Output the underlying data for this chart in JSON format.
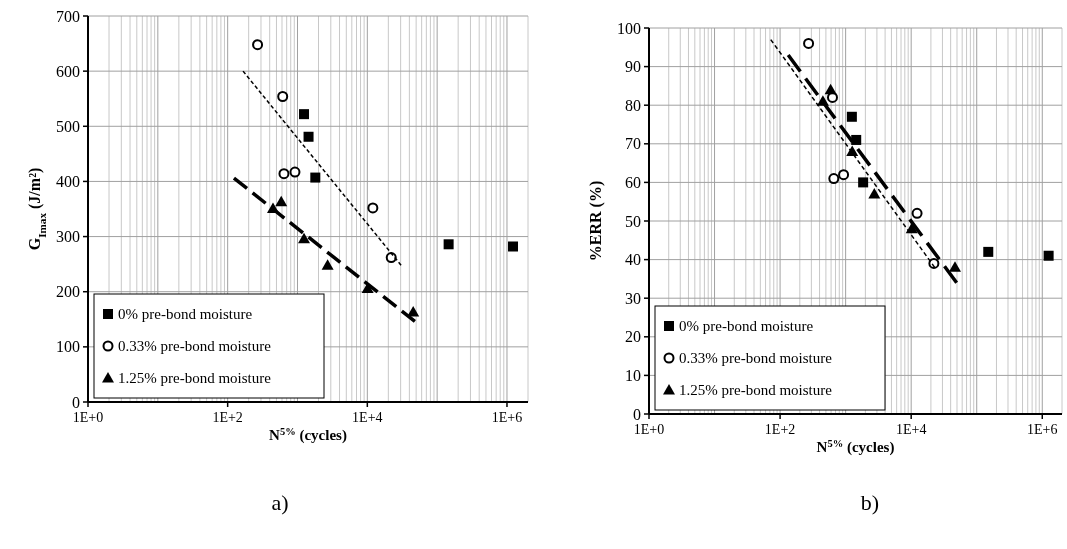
{
  "chart_data": [
    {
      "type": "scatter",
      "ylabel": "G$_{Imax}$ (J/m²)",
      "xlabel": "N$^{5%}$ (cycles)",
      "annotations": [
        "a)"
      ],
      "log": "x",
      "grid": true,
      "legend": "bottom left",
      "xlim": [
        1,
        2000000
      ],
      "xticks": [
        {
          "value": 1,
          "label": "1E+0"
        },
        {
          "value": 100,
          "label": "1E+2"
        },
        {
          "value": 10000,
          "label": "1E+4"
        },
        {
          "value": 1000000,
          "label": "1E+6"
        }
      ],
      "ylim": [
        0,
        700
      ],
      "yticks": [
        0,
        100,
        200,
        300,
        400,
        500,
        600,
        700
      ],
      "series": [
        {
          "name": "0% pre-bond moisture",
          "marker": "square",
          "color": "#000000",
          "x": [
            1240,
            1440,
            1800,
            146000,
            1220000
          ],
          "values": [
            522,
            481,
            407,
            286,
            282
          ]
        },
        {
          "name": "0.33% pre-bond moisture",
          "marker": "circle",
          "color": "#000000",
          "x": [
            268,
            614,
            640,
            920,
            12000,
            22000
          ],
          "values": [
            648,
            554,
            414,
            417,
            352,
            262
          ]
        },
        {
          "name": "1.25% pre-bond moisture",
          "marker": "triangle",
          "color": "#000000",
          "x": [
            446,
            585,
            1240,
            2700,
            10100,
            45400
          ],
          "values": [
            351,
            363,
            296,
            248,
            206,
            163
          ]
        },
        {
          "type": "line",
          "line_style": "dashed",
          "marker": "none",
          "color": "#000000",
          "x": [
            166,
            30400
          ],
          "values": [
            600,
            248
          ]
        },
        {
          "type": "line",
          "line_style": "dashed",
          "marker": "none",
          "color": "#000000",
          "x": [
            123,
            48000
          ],
          "values": [
            406,
            146
          ]
        }
      ]
    },
    {
      "type": "scatter",
      "ylabel": "%ERR (%)",
      "xlabel": "N$^{5%}$ (cycles)",
      "annotations": [
        "b)"
      ],
      "log": "x",
      "grid": true,
      "legend": "bottom left",
      "xlim": [
        1,
        2000000
      ],
      "xticks": [
        {
          "value": 1,
          "label": "1E+0"
        },
        {
          "value": 100,
          "label": "1E+2"
        },
        {
          "value": 10000,
          "label": "1E+4"
        },
        {
          "value": 1000000,
          "label": "1E+6"
        }
      ],
      "ylim": [
        0,
        100
      ],
      "yticks": [
        0,
        10,
        20,
        30,
        40,
        50,
        60,
        70,
        80,
        90,
        100
      ],
      "series": [
        {
          "name": "0% pre-bond moisture",
          "marker": "square",
          "color": "#000000",
          "x": [
            1245,
            1450,
            1850,
            150000,
            1250000
          ],
          "values": [
            77,
            71,
            60,
            42,
            41
          ]
        },
        {
          "name": "0.33% pre-bond moisture",
          "marker": "circle",
          "color": "#000000",
          "x": [
            272,
            630,
            660,
            930,
            12300,
            22200
          ],
          "values": [
            96,
            82,
            61,
            62,
            52,
            39
          ]
        },
        {
          "name": "1.25% pre-bond moisture",
          "marker": "triangle",
          "color": "#000000",
          "x": [
            590,
            450,
            1260,
            2740,
            10200,
            46600
          ],
          "values": [
            84,
            81,
            68,
            57,
            48,
            38
          ]
        },
        {
          "type": "line",
          "line_style": "dashed",
          "marker": "none",
          "color": "#000000",
          "x": [
            72,
            22800
          ],
          "values": [
            97,
            38
          ]
        },
        {
          "type": "line",
          "line_style": "dashed",
          "marker": "none",
          "color": "#000000",
          "x": [
            133,
            49400
          ],
          "values": [
            93,
            34
          ]
        }
      ]
    }
  ]
}
